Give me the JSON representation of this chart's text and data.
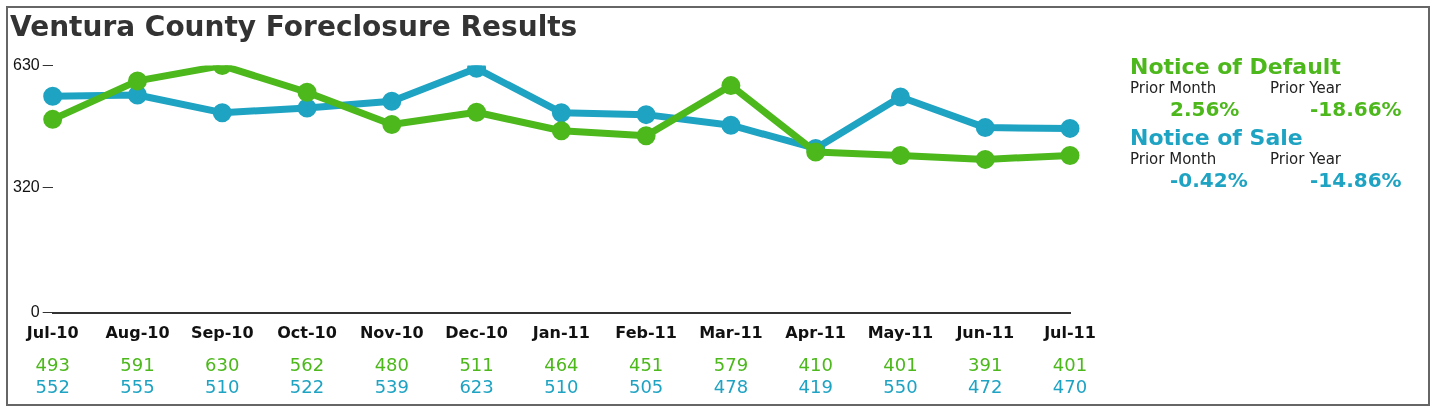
{
  "chart_data": {
    "type": "line",
    "title": "Ventura County Foreclosure Results",
    "categories": [
      "Jul-10",
      "Aug-10",
      "Sep-10",
      "Oct-10",
      "Nov-10",
      "Dec-10",
      "Jan-11",
      "Feb-11",
      "Mar-11",
      "Apr-11",
      "May-11",
      "Jun-11",
      "Jul-11"
    ],
    "series": [
      {
        "name": "Notice of Default",
        "color": "#4cb81c",
        "values": [
          493,
          591,
          630,
          562,
          480,
          511,
          464,
          451,
          579,
          410,
          401,
          391,
          401
        ]
      },
      {
        "name": "Notice of Sale",
        "color": "#1ea3c3",
        "values": [
          552,
          555,
          510,
          522,
          539,
          623,
          510,
          505,
          478,
          419,
          550,
          472,
          470
        ]
      }
    ],
    "ylim": [
      0,
      630
    ],
    "yticks": [
      0,
      320,
      630
    ],
    "grid": false,
    "legend": "right",
    "marker": "circle",
    "line_style": "solid",
    "data_labels": true,
    "annotations": [
      "Prior Month",
      "Prior Year",
      "2.56%",
      "-18.66%",
      "Prior Month",
      "Prior Year",
      "-0.42%",
      "-14.86%"
    ]
  }
}
